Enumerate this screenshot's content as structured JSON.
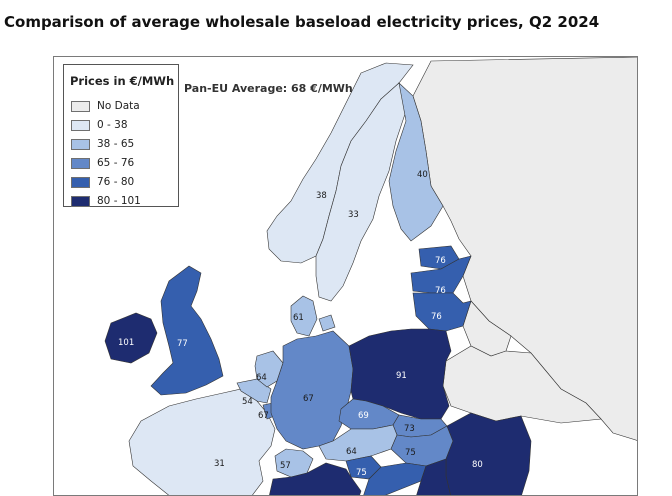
{
  "title": "Comparison of average wholesale baseload electricity prices, Q2 2024",
  "legend": {
    "title": "Prices in €/MWh",
    "items": [
      {
        "label": "No Data",
        "color": "#ececec"
      },
      {
        "label": "0 - 38",
        "color": "#dde7f4"
      },
      {
        "label": "38 - 65",
        "color": "#a8c2e6"
      },
      {
        "label": "65 - 76",
        "color": "#6388c8"
      },
      {
        "label": "76 - 80",
        "color": "#355fae"
      },
      {
        "label": "80 - 101",
        "color": "#1e2c70"
      }
    ]
  },
  "pan_eu_average": "Pan-EU Average: 68 €/MWh",
  "colors": {
    "sea": "#ffffff",
    "no_data": "#ececec",
    "border": "#333333"
  },
  "regions": [
    {
      "name": "Ireland",
      "price": "101"
    },
    {
      "name": "Great Britain",
      "price": "77"
    },
    {
      "name": "Norway",
      "price": "38"
    },
    {
      "name": "Sweden",
      "price": "33"
    },
    {
      "name": "Finland",
      "price": "40"
    },
    {
      "name": "Estonia",
      "price": "76"
    },
    {
      "name": "Latvia",
      "price": "76"
    },
    {
      "name": "Lithuania",
      "price": "76"
    },
    {
      "name": "Denmark",
      "price": "61"
    },
    {
      "name": "Netherlands",
      "price": "64"
    },
    {
      "name": "Belgium",
      "price": "54"
    },
    {
      "name": "Luxembourg",
      "price": "67"
    },
    {
      "name": "Germany",
      "price": "67"
    },
    {
      "name": "Poland",
      "price": "91"
    },
    {
      "name": "Czechia",
      "price": "69"
    },
    {
      "name": "Slovakia",
      "price": "73"
    },
    {
      "name": "Austria",
      "price": "64"
    },
    {
      "name": "Hungary",
      "price": "75"
    },
    {
      "name": "Romania",
      "price": "80"
    },
    {
      "name": "Switzerland",
      "price": "57"
    },
    {
      "name": "Slovenia",
      "price": "75"
    },
    {
      "name": "France",
      "price": "31"
    }
  ]
}
